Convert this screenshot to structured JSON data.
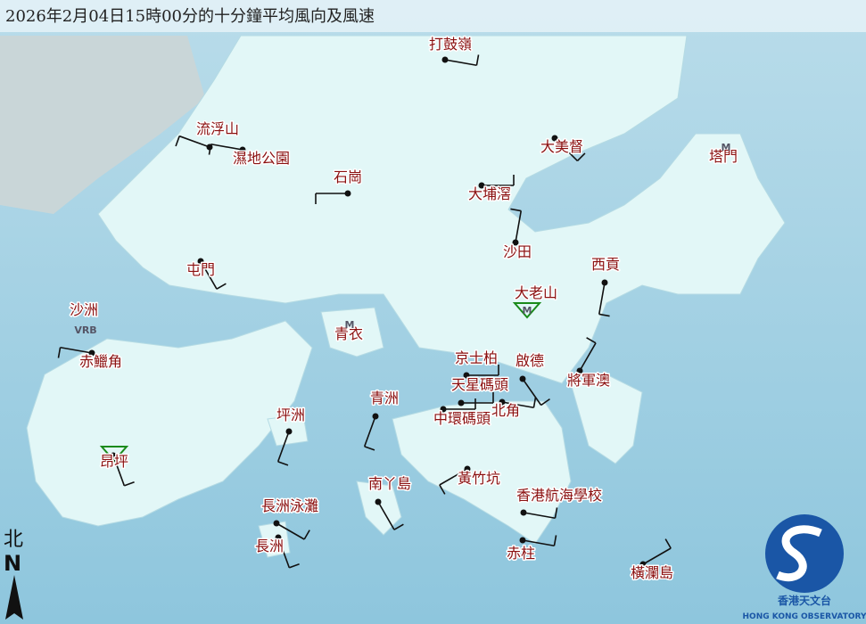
{
  "header": {
    "title": "2026年2月04日15時00分的十分鐘平均風向及風速"
  },
  "stations": [
    {
      "name": "打鼓嶺"
    },
    {
      "name": "流浮山"
    },
    {
      "name": "濕地公園"
    },
    {
      "name": "石崗"
    },
    {
      "name": "大美督"
    },
    {
      "name": "塔門",
      "note": "M"
    },
    {
      "name": "大埔滘"
    },
    {
      "name": "沙田"
    },
    {
      "name": "屯門"
    },
    {
      "name": "西貢"
    },
    {
      "name": "大老山",
      "note": "M"
    },
    {
      "name": "沙洲",
      "note": "VRB"
    },
    {
      "name": "青衣",
      "note": "M"
    },
    {
      "name": "赤鱲角"
    },
    {
      "name": "京士柏"
    },
    {
      "name": "啟德"
    },
    {
      "name": "將軍澳"
    },
    {
      "name": "天星碼頭"
    },
    {
      "name": "北角"
    },
    {
      "name": "青洲"
    },
    {
      "name": "坪洲"
    },
    {
      "name": "中環碼頭"
    },
    {
      "name": "昂坪"
    },
    {
      "name": "黃竹坑"
    },
    {
      "name": "南丫島"
    },
    {
      "name": "香港航海學校"
    },
    {
      "name": "長洲泳灘"
    },
    {
      "name": "長洲"
    },
    {
      "name": "赤柱"
    },
    {
      "name": "橫瀾島"
    }
  ],
  "compass": {
    "zh": "北",
    "en": "N"
  },
  "logo": {
    "zh": "香港天文台",
    "en": "HONG KONG OBSERVATORY"
  }
}
